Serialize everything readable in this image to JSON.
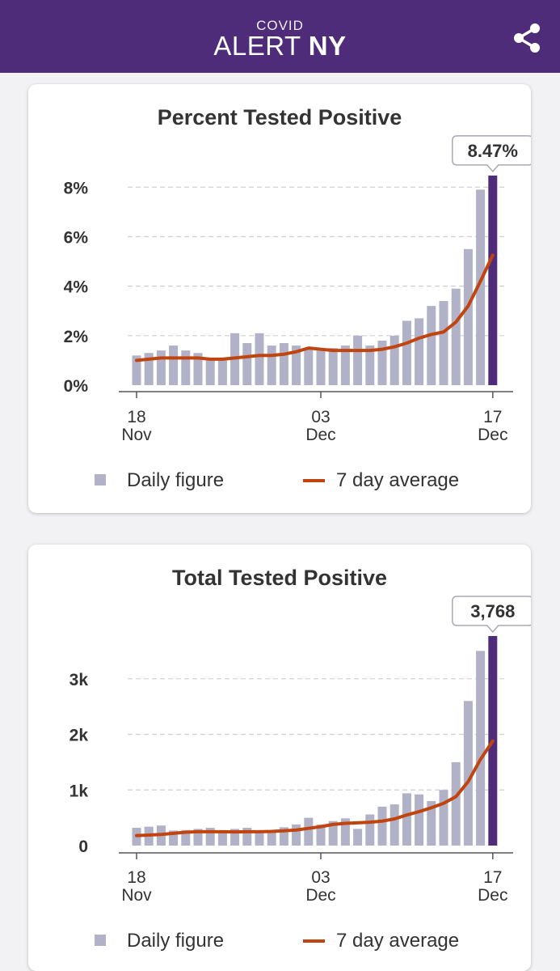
{
  "app": {
    "brand_small": "COVID",
    "brand_main": "ALERT",
    "brand_bold": "NY",
    "share_icon": "share-icon"
  },
  "colors": {
    "header": "#4e2c79",
    "bar": "#b1b1c8",
    "bar_highlight": "#4e2c79",
    "avg_line": "#c1440e"
  },
  "chart_data": [
    {
      "type": "bar",
      "title": "Percent Tested Positive",
      "callout": "8.47%",
      "x_ticks": [
        {
          "index": 0,
          "day": "18",
          "month": "Nov"
        },
        {
          "index": 15,
          "day": "03",
          "month": "Dec"
        },
        {
          "index": 29,
          "day": "17",
          "month": "Dec"
        }
      ],
      "y_ticks": [
        {
          "value": 0,
          "label": "0%"
        },
        {
          "value": 2,
          "label": "2%"
        },
        {
          "value": 4,
          "label": "4%"
        },
        {
          "value": 6,
          "label": "6%"
        },
        {
          "value": 8,
          "label": "8%"
        }
      ],
      "ylim": [
        0,
        8.5
      ],
      "legend": {
        "daily": "Daily figure",
        "average": "7 day average"
      },
      "series": [
        {
          "name": "Daily figure",
          "values": [
            1.2,
            1.3,
            1.4,
            1.6,
            1.4,
            1.3,
            1.0,
            1.0,
            2.1,
            1.7,
            2.1,
            1.6,
            1.7,
            1.6,
            1.5,
            1.4,
            1.5,
            1.6,
            2.0,
            1.6,
            1.8,
            2.0,
            2.6,
            2.7,
            3.2,
            3.4,
            3.9,
            5.5,
            7.9,
            8.47
          ]
        },
        {
          "name": "7 day average",
          "values": [
            1.0,
            1.05,
            1.1,
            1.1,
            1.1,
            1.1,
            1.05,
            1.05,
            1.1,
            1.15,
            1.2,
            1.2,
            1.25,
            1.35,
            1.5,
            1.45,
            1.4,
            1.4,
            1.4,
            1.4,
            1.45,
            1.55,
            1.7,
            1.9,
            2.05,
            2.15,
            2.55,
            3.2,
            4.2,
            5.25
          ]
        }
      ]
    },
    {
      "type": "bar",
      "title": "Total Tested Positive",
      "callout": "3,768",
      "x_ticks": [
        {
          "index": 0,
          "day": "18",
          "month": "Nov"
        },
        {
          "index": 15,
          "day": "03",
          "month": "Dec"
        },
        {
          "index": 29,
          "day": "17",
          "month": "Dec"
        }
      ],
      "y_ticks": [
        {
          "value": 0,
          "label": "0"
        },
        {
          "value": 1000,
          "label": "1k"
        },
        {
          "value": 2000,
          "label": "2k"
        },
        {
          "value": 3000,
          "label": "3k"
        }
      ],
      "ylim": [
        0,
        3768
      ],
      "legend": {
        "daily": "Daily figure",
        "average": "7 day average"
      },
      "series": [
        {
          "name": "Daily figure",
          "values": [
            320,
            340,
            360,
            270,
            280,
            300,
            320,
            270,
            300,
            320,
            260,
            250,
            330,
            380,
            500,
            380,
            440,
            490,
            300,
            560,
            700,
            740,
            940,
            920,
            800,
            1000,
            1500,
            2600,
            3500,
            3768
          ]
        },
        {
          "name": "7 day average",
          "values": [
            180,
            190,
            200,
            220,
            240,
            250,
            250,
            250,
            245,
            250,
            250,
            255,
            265,
            280,
            310,
            340,
            380,
            400,
            410,
            420,
            440,
            480,
            550,
            610,
            680,
            760,
            880,
            1150,
            1550,
            1880
          ]
        }
      ]
    }
  ]
}
